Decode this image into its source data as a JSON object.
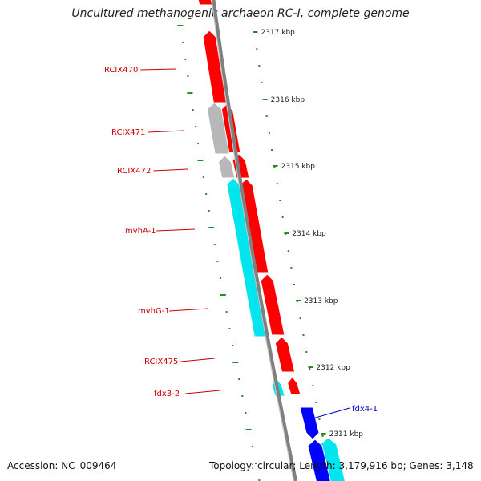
{
  "title": "Uncultured methanogenic archaeon RC-I, complete genome",
  "footer": {
    "accession": "Accession: NC_009464",
    "summary": "Topology: circular; Length: 3,179,916 bp; Genes: 3,148"
  },
  "colors": {
    "red_gene": "#ff0000",
    "gray_gene": "#b8b8b8",
    "cyan_gene": "#00e5ee",
    "blue_gene": "#0000ff",
    "backbone": "#808080",
    "tick": "#2a8a2a",
    "label_red": "#cc0000",
    "label_blue": "#0000cc"
  },
  "scale": {
    "unit": "kbp",
    "ticks": [
      {
        "label": "2317 kbp"
      },
      {
        "label": "2316 kbp"
      },
      {
        "label": "2315 kbp"
      },
      {
        "label": "2314 kbp"
      },
      {
        "label": "2313 kbp"
      },
      {
        "label": "2312 kbp"
      },
      {
        "label": "2311 kbp"
      }
    ]
  },
  "genes": [
    {
      "label": "RCIX470",
      "color": "red"
    },
    {
      "label": "RCIX471",
      "color": "red"
    },
    {
      "label": "RCIX472",
      "color": "red"
    },
    {
      "label": "mvhA-1",
      "color": "cyan"
    },
    {
      "label": "mvhG-1",
      "color": "cyan"
    },
    {
      "label": "RCIX475",
      "color": "red"
    },
    {
      "label": "fdx3-2",
      "color": "red"
    },
    {
      "label": "fdx4-1",
      "color": "blue"
    }
  ]
}
